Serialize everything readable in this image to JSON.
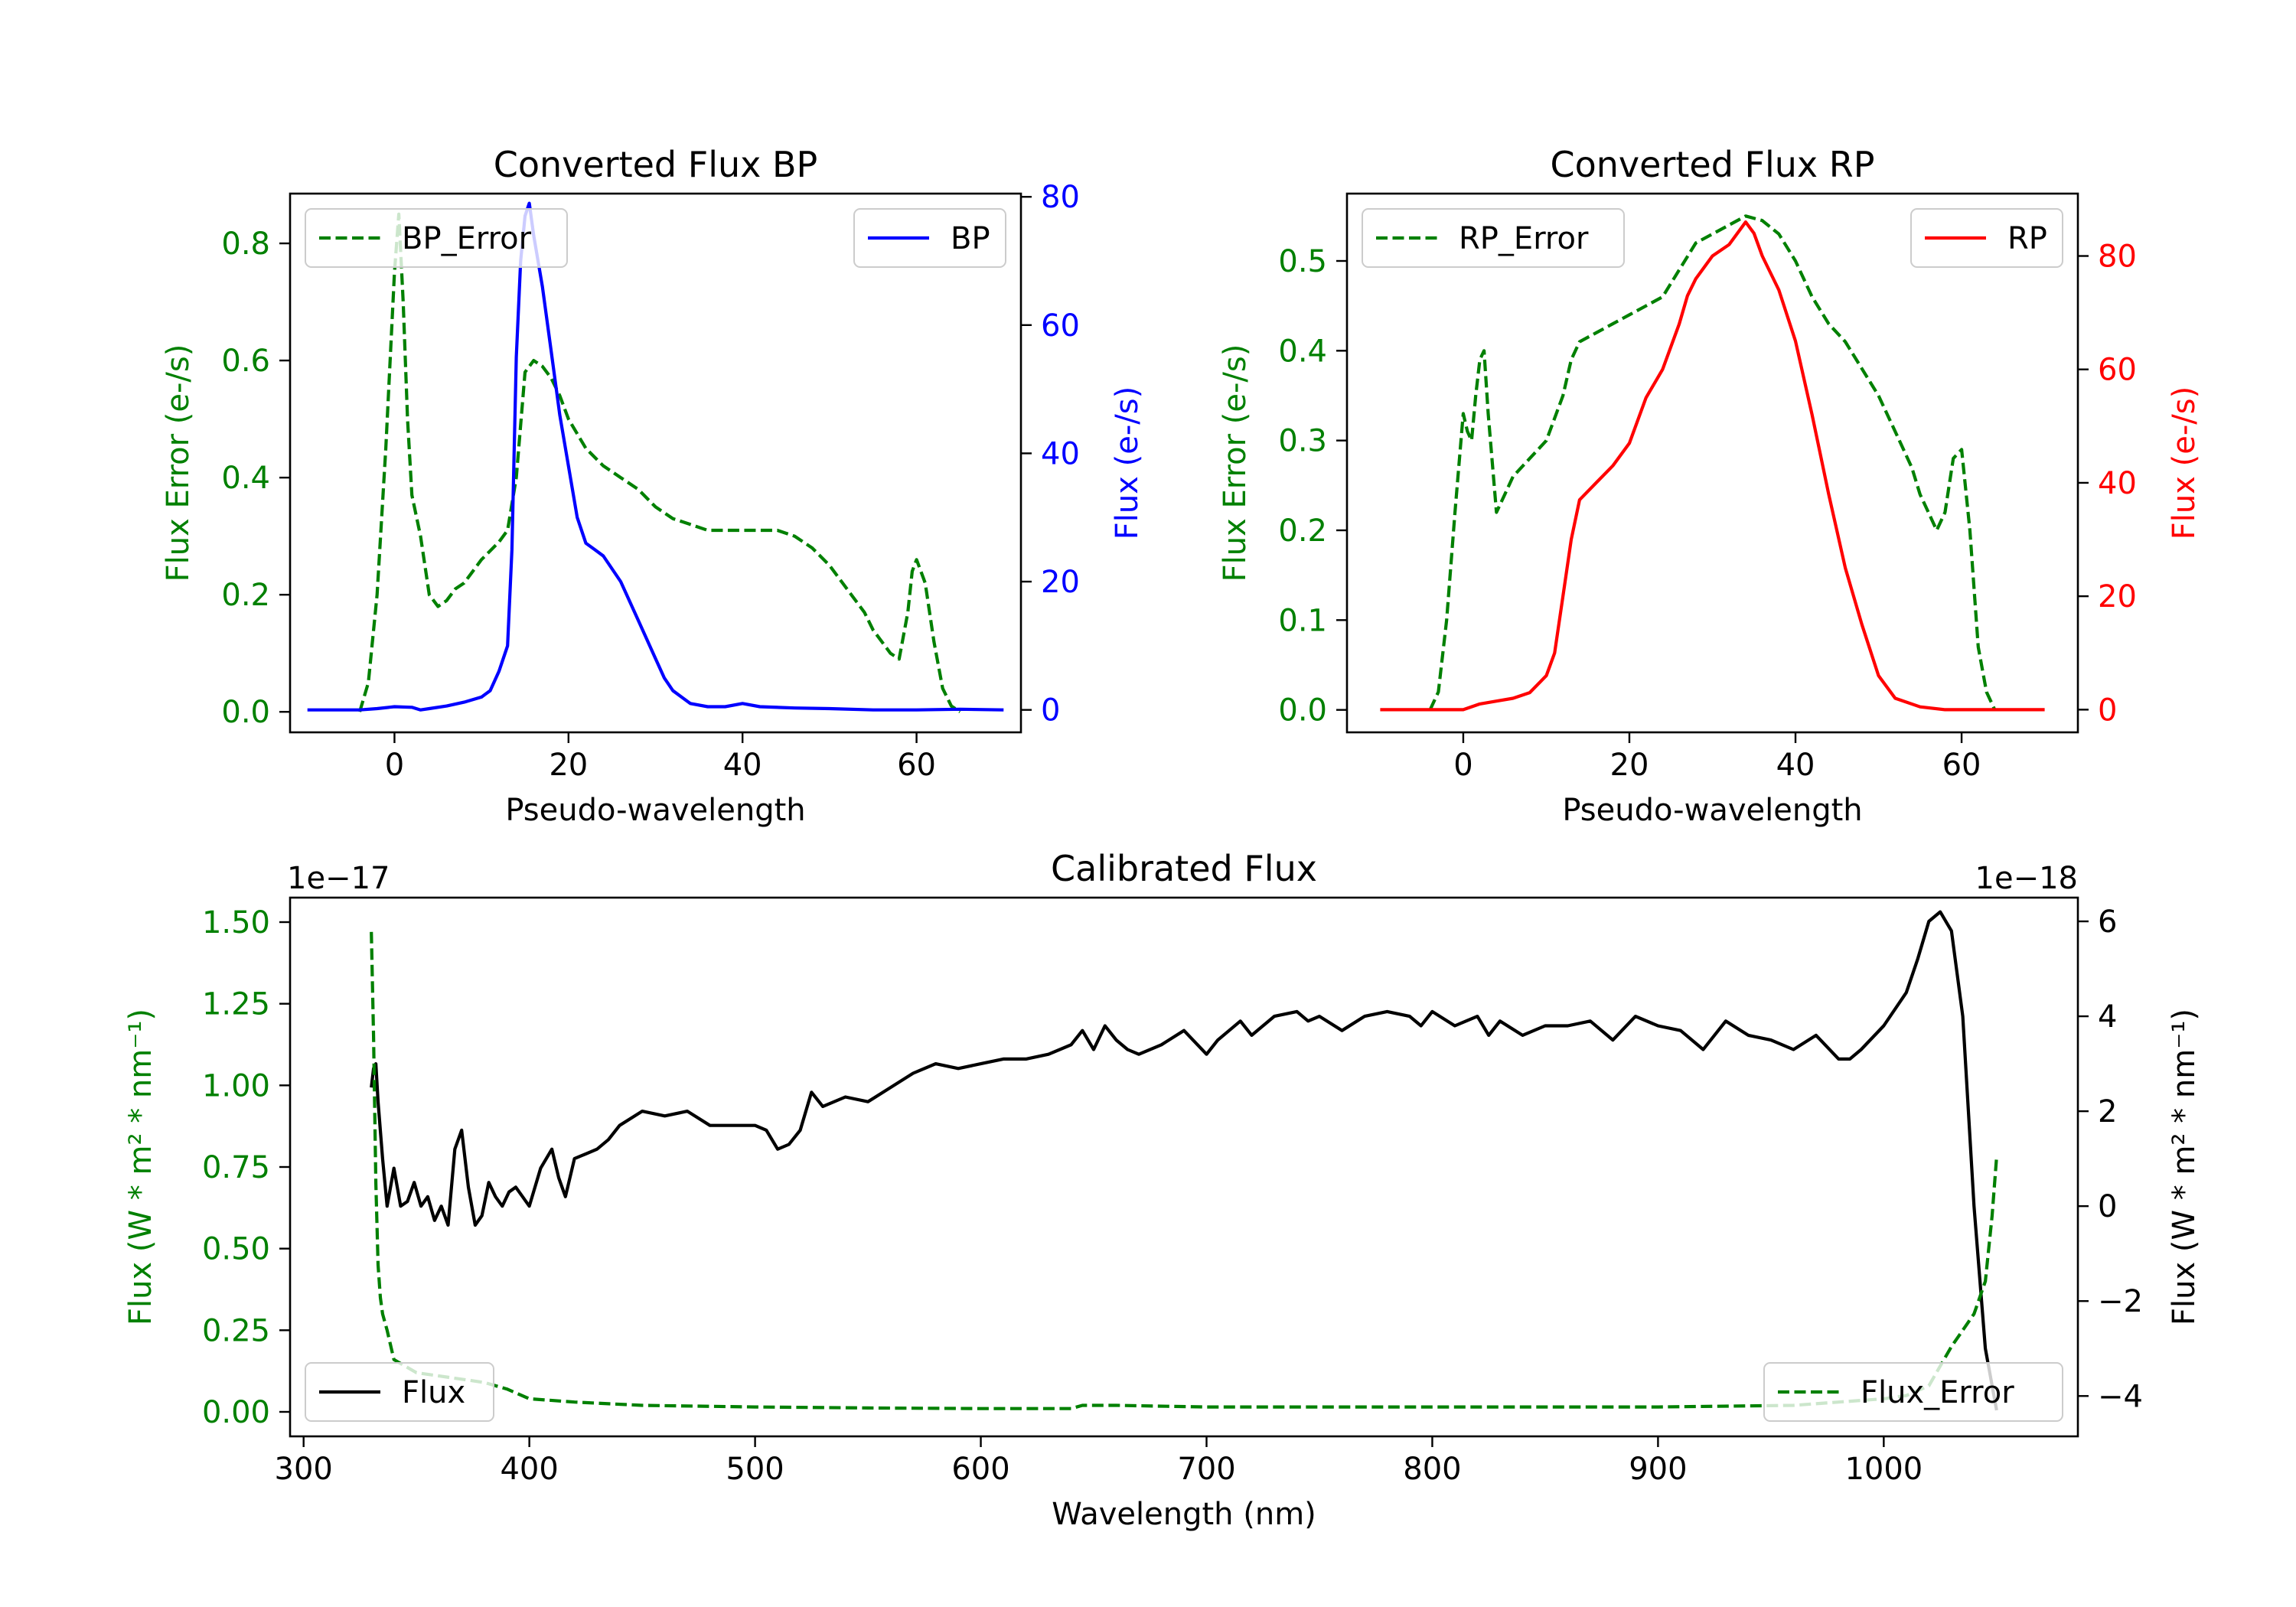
{
  "colors": {
    "error": "#008000",
    "bp": "#0000ff",
    "rp": "#ff0000",
    "flux": "#000000",
    "axis": "#000000"
  },
  "chart_data": [
    {
      "id": "bp",
      "type": "line",
      "title": "Converted Flux BP",
      "xlabel": "Pseudo-wavelength",
      "ylabel_left": "Flux Error (e-/s)",
      "ylabel_right": "Flux (e-/s)",
      "xlim": [
        -12,
        72
      ],
      "ylim_left": [
        -0.035,
        0.885
      ],
      "ylim_right": [
        -3.5,
        80.5
      ],
      "xticks": [
        0,
        20,
        40,
        60
      ],
      "xtick_labels": [
        "0",
        "20",
        "40",
        "60"
      ],
      "yticks_left": [
        0.0,
        0.2,
        0.4,
        0.6,
        0.8
      ],
      "ytick_labels_left": [
        "0.0",
        "0.2",
        "0.4",
        "0.6",
        "0.8"
      ],
      "yticks_right": [
        0,
        20,
        40,
        60,
        80
      ],
      "ytick_labels_right": [
        "0",
        "20",
        "40",
        "60",
        "80"
      ],
      "legend_left": "top-left",
      "legend_right": "top-right",
      "series": [
        {
          "name": "BP_Error",
          "axis": "left",
          "style": "dashed",
          "color": "#008000",
          "x": [
            -4,
            -3,
            -2,
            -1,
            0,
            0.5,
            1,
            1.5,
            2,
            3,
            4,
            5,
            6,
            7,
            8,
            10,
            12,
            13,
            14,
            15,
            16,
            17,
            18,
            19,
            20,
            22,
            24,
            26,
            28,
            30,
            32,
            34,
            36,
            38,
            40,
            42,
            44,
            46,
            48,
            50,
            52,
            54,
            55,
            56,
            57,
            58,
            59,
            59.5,
            60,
            61,
            62,
            63,
            64,
            65
          ],
          "y": [
            0.0,
            0.05,
            0.2,
            0.45,
            0.75,
            0.85,
            0.7,
            0.5,
            0.37,
            0.3,
            0.2,
            0.18,
            0.19,
            0.21,
            0.22,
            0.26,
            0.29,
            0.31,
            0.4,
            0.58,
            0.6,
            0.59,
            0.57,
            0.54,
            0.5,
            0.45,
            0.42,
            0.4,
            0.38,
            0.35,
            0.33,
            0.32,
            0.31,
            0.31,
            0.31,
            0.31,
            0.31,
            0.3,
            0.28,
            0.25,
            0.21,
            0.17,
            0.14,
            0.12,
            0.1,
            0.09,
            0.17,
            0.24,
            0.26,
            0.22,
            0.12,
            0.04,
            0.01,
            0.0
          ]
        },
        {
          "name": "BP",
          "axis": "right",
          "style": "solid",
          "color": "#0000ff",
          "x": [
            -10,
            -6,
            -4,
            -2,
            0,
            2,
            3,
            4,
            6,
            8,
            10,
            11,
            12,
            13,
            13.5,
            14,
            14.5,
            15,
            15.5,
            16,
            17,
            18,
            19,
            20,
            21,
            22,
            23,
            24,
            26,
            28,
            30,
            31,
            32,
            33,
            34,
            36,
            38,
            40,
            42,
            46,
            50,
            55,
            60,
            65,
            70
          ],
          "y": [
            0,
            0,
            0,
            0.2,
            0.5,
            0.4,
            0,
            0.2,
            0.6,
            1.2,
            2,
            3,
            6,
            10,
            25,
            55,
            70,
            77,
            79,
            74,
            66,
            56,
            46,
            38,
            30,
            26,
            25,
            24,
            20,
            14,
            8,
            5,
            3,
            2,
            1,
            0.5,
            0.5,
            1,
            0.5,
            0.3,
            0.2,
            0,
            0,
            0.1,
            0
          ]
        }
      ]
    },
    {
      "id": "rp",
      "type": "line",
      "title": "Converted Flux RP",
      "xlabel": "Pseudo-wavelength",
      "ylabel_left": "Flux Error (e-/s)",
      "ylabel_right": "Flux (e-/s)",
      "xlim": [
        -14,
        74
      ],
      "ylim_left": [
        -0.025,
        0.575
      ],
      "ylim_right": [
        -4,
        91
      ],
      "xticks": [
        0,
        20,
        40,
        60
      ],
      "xtick_labels": [
        "0",
        "20",
        "40",
        "60"
      ],
      "yticks_left": [
        0.0,
        0.1,
        0.2,
        0.3,
        0.4,
        0.5
      ],
      "ytick_labels_left": [
        "0.0",
        "0.1",
        "0.2",
        "0.3",
        "0.4",
        "0.5"
      ],
      "yticks_right": [
        0,
        20,
        40,
        60,
        80
      ],
      "ytick_labels_right": [
        "0",
        "20",
        "40",
        "60",
        "80"
      ],
      "legend_left": "top-left",
      "legend_right": "top-right",
      "series": [
        {
          "name": "RP_Error",
          "axis": "left",
          "style": "dashed",
          "color": "#008000",
          "x": [
            -4,
            -3,
            -2,
            -1,
            0,
            0.5,
            1,
            1.5,
            2,
            2.5,
            3,
            4,
            5,
            6,
            8,
            10,
            12,
            13,
            14,
            16,
            18,
            20,
            22,
            24,
            26,
            28,
            30,
            32,
            34,
            36,
            38,
            40,
            42,
            44,
            46,
            48,
            50,
            52,
            54,
            55,
            56,
            57,
            58,
            59,
            60,
            61,
            62,
            63,
            64
          ],
          "y": [
            0.0,
            0.02,
            0.1,
            0.22,
            0.33,
            0.31,
            0.3,
            0.35,
            0.39,
            0.4,
            0.33,
            0.22,
            0.24,
            0.26,
            0.28,
            0.3,
            0.35,
            0.39,
            0.41,
            0.42,
            0.43,
            0.44,
            0.45,
            0.46,
            0.49,
            0.52,
            0.53,
            0.54,
            0.55,
            0.545,
            0.53,
            0.5,
            0.46,
            0.43,
            0.41,
            0.38,
            0.35,
            0.31,
            0.27,
            0.24,
            0.22,
            0.2,
            0.22,
            0.28,
            0.29,
            0.2,
            0.07,
            0.02,
            0.0
          ]
        },
        {
          "name": "RP",
          "axis": "right",
          "style": "solid",
          "color": "#ff0000",
          "x": [
            -10,
            -5,
            0,
            2,
            4,
            6,
            8,
            10,
            11,
            12,
            13,
            14,
            16,
            18,
            20,
            22,
            24,
            26,
            27,
            28,
            30,
            32,
            33,
            34,
            35,
            36,
            38,
            40,
            42,
            44,
            46,
            48,
            50,
            52,
            55,
            58,
            62,
            66,
            70
          ],
          "y": [
            0,
            0,
            0,
            1,
            1.5,
            2,
            3,
            6,
            10,
            20,
            30,
            37,
            40,
            43,
            47,
            55,
            60,
            68,
            73,
            76,
            80,
            82,
            84,
            86,
            84,
            80,
            74,
            65,
            52,
            38,
            25,
            15,
            6,
            2,
            0.5,
            0,
            0,
            0,
            0
          ]
        }
      ]
    },
    {
      "id": "calibrated",
      "type": "line",
      "title": "Calibrated Flux",
      "xlabel": "Wavelength (nm)",
      "ylabel_left": "Flux (W * m² * nm⁻¹)",
      "ylabel_right": "Flux (W * m² * nm⁻¹)",
      "offset_left": "1e−17",
      "offset_right": "1e−18",
      "xlim": [
        294,
        1086
      ],
      "ylim_left": [
        -0.075,
        1.575
      ],
      "ylim_right": [
        -4.85,
        6.5
      ],
      "xticks": [
        300,
        400,
        500,
        600,
        700,
        800,
        900,
        1000
      ],
      "xtick_labels": [
        "300",
        "400",
        "500",
        "600",
        "700",
        "800",
        "900",
        "1000"
      ],
      "yticks_left": [
        0.0,
        0.25,
        0.5,
        0.75,
        1.0,
        1.25,
        1.5
      ],
      "ytick_labels_left": [
        "0.00",
        "0.25",
        "0.50",
        "0.75",
        "1.00",
        "1.25",
        "1.50"
      ],
      "yticks_right": [
        -4,
        -2,
        0,
        2,
        4,
        6
      ],
      "ytick_labels_right": [
        "−4",
        "−2",
        "0",
        "2",
        "4",
        "6"
      ],
      "legend_left": "bottom-left",
      "legend_right": "bottom-right",
      "series": [
        {
          "name": "Flux",
          "axis": "right",
          "style": "solid",
          "color": "#000000",
          "x": [
            330,
            331,
            332,
            333,
            335,
            337,
            340,
            343,
            346,
            349,
            352,
            355,
            358,
            361,
            364,
            367,
            370,
            373,
            376,
            379,
            382,
            385,
            388,
            391,
            394,
            397,
            400,
            405,
            410,
            413,
            416,
            420,
            425,
            430,
            435,
            440,
            450,
            460,
            470,
            480,
            490,
            500,
            505,
            510,
            515,
            520,
            525,
            530,
            540,
            550,
            560,
            570,
            580,
            590,
            600,
            610,
            620,
            630,
            640,
            645,
            650,
            655,
            660,
            665,
            670,
            680,
            690,
            700,
            705,
            710,
            715,
            720,
            730,
            740,
            745,
            750,
            760,
            770,
            780,
            790,
            795,
            800,
            810,
            820,
            825,
            830,
            840,
            850,
            860,
            870,
            880,
            890,
            900,
            910,
            920,
            930,
            940,
            950,
            960,
            970,
            980,
            985,
            990,
            1000,
            1010,
            1015,
            1020,
            1025,
            1030,
            1035,
            1040,
            1045,
            1050
          ],
          "y": [
            2.5,
            2.9,
            3.0,
            2.2,
            1.0,
            0.0,
            0.8,
            0.0,
            0.1,
            0.5,
            0.0,
            0.2,
            -0.3,
            0.0,
            -0.4,
            1.2,
            1.6,
            0.4,
            -0.4,
            -0.2,
            0.5,
            0.2,
            -0.0,
            0.3,
            0.4,
            0.2,
            0.0,
            0.8,
            1.2,
            0.6,
            0.2,
            1.0,
            1.1,
            1.2,
            1.4,
            1.7,
            2.0,
            1.9,
            2.0,
            1.7,
            1.7,
            1.7,
            1.6,
            1.2,
            1.3,
            1.6,
            2.4,
            2.1,
            2.3,
            2.2,
            2.5,
            2.8,
            3.0,
            2.9,
            3.0,
            3.1,
            3.1,
            3.2,
            3.4,
            3.7,
            3.3,
            3.8,
            3.5,
            3.3,
            3.2,
            3.4,
            3.7,
            3.2,
            3.5,
            3.7,
            3.9,
            3.6,
            4.0,
            4.1,
            3.9,
            4.0,
            3.7,
            4.0,
            4.1,
            4.0,
            3.8,
            4.1,
            3.8,
            4.0,
            3.6,
            3.9,
            3.6,
            3.8,
            3.8,
            3.9,
            3.5,
            4.0,
            3.8,
            3.7,
            3.3,
            3.9,
            3.6,
            3.5,
            3.3,
            3.6,
            3.1,
            3.1,
            3.3,
            3.8,
            4.5,
            5.2,
            6.0,
            6.2,
            5.8,
            4.0,
            0.0,
            -3.0,
            -4.3
          ]
        },
        {
          "name": "Flux_Error",
          "axis": "left",
          "style": "dashed",
          "color": "#008000",
          "x": [
            330,
            331,
            332,
            333,
            334,
            335,
            337,
            340,
            345,
            350,
            360,
            370,
            380,
            390,
            400,
            420,
            450,
            500,
            550,
            600,
            640,
            645,
            660,
            700,
            800,
            900,
            960,
            980,
            1000,
            1010,
            1020,
            1030,
            1035,
            1040,
            1045,
            1048,
            1050
          ],
          "y": [
            1.47,
            1.15,
            0.7,
            0.45,
            0.35,
            0.3,
            0.25,
            0.16,
            0.14,
            0.12,
            0.11,
            0.1,
            0.09,
            0.07,
            0.04,
            0.03,
            0.02,
            0.015,
            0.012,
            0.01,
            0.01,
            0.02,
            0.02,
            0.015,
            0.015,
            0.015,
            0.02,
            0.03,
            0.04,
            0.05,
            0.08,
            0.2,
            0.25,
            0.3,
            0.4,
            0.6,
            0.78
          ]
        }
      ]
    }
  ]
}
